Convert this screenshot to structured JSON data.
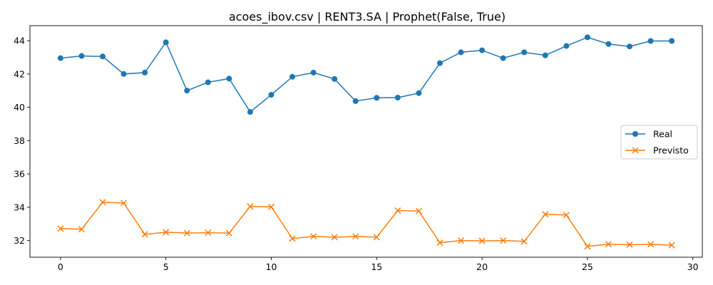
{
  "chart_data": {
    "type": "line",
    "title": "acoes_ibov.csv | RENT3.SA | Prophet(False, True)",
    "xlabel": "",
    "ylabel": "",
    "xlim": [
      -1.45,
      30.45
    ],
    "ylim": [
      31.0,
      44.9
    ],
    "xticks": [
      0,
      5,
      10,
      15,
      20,
      25,
      30
    ],
    "yticks": [
      32,
      34,
      36,
      38,
      40,
      42,
      44
    ],
    "grid": false,
    "legend_position": "center-right",
    "x": [
      0,
      1,
      2,
      3,
      4,
      5,
      6,
      7,
      8,
      9,
      10,
      11,
      12,
      13,
      14,
      15,
      16,
      17,
      18,
      19,
      20,
      21,
      22,
      23,
      24,
      25,
      26,
      27,
      28,
      29
    ],
    "series": [
      {
        "name": "Real",
        "marker": "circle",
        "color": "#1f77b4",
        "values": [
          42.95,
          43.08,
          43.05,
          42.0,
          42.08,
          43.9,
          41.0,
          41.5,
          41.72,
          39.72,
          40.75,
          41.83,
          42.08,
          41.7,
          40.37,
          40.57,
          40.58,
          40.85,
          42.65,
          43.3,
          43.42,
          42.95,
          43.3,
          43.12,
          43.68,
          44.2,
          43.8,
          43.65,
          43.98,
          43.98
        ]
      },
      {
        "name": "Previsto",
        "marker": "x",
        "color": "#ff7f0e",
        "values": [
          32.72,
          32.68,
          34.3,
          34.25,
          32.37,
          32.5,
          32.45,
          32.47,
          32.45,
          34.05,
          34.02,
          32.12,
          32.25,
          32.2,
          32.25,
          32.2,
          33.8,
          33.77,
          31.87,
          32.0,
          31.98,
          32.0,
          31.95,
          33.58,
          33.53,
          31.65,
          31.78,
          31.75,
          31.77,
          31.72
        ]
      }
    ]
  }
}
